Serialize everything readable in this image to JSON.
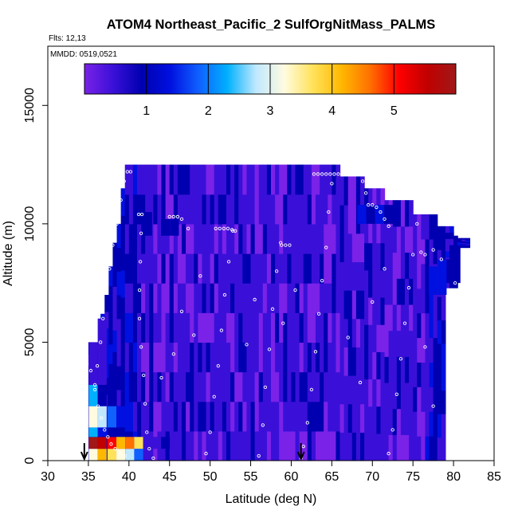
{
  "chart_data": {
    "type": "heatmap",
    "title": "ATOM4 Northeast_Pacific_2 SulfOrgNitMass_PALMS",
    "flights_label": "Flts: 12,13",
    "dates_label": "MMDD: 0519,0521",
    "xlabel": "Latitude (deg N)",
    "ylabel": "Altitude (m)",
    "xlim": [
      30,
      85
    ],
    "ylim": [
      0,
      17500
    ],
    "x_ticks": [
      "30",
      "35",
      "40",
      "45",
      "50",
      "55",
      "60",
      "65",
      "70",
      "75",
      "80",
      "85"
    ],
    "y_ticks": [
      "0",
      "5000",
      "10000",
      "15000"
    ],
    "colorbar": {
      "range": [
        0,
        6
      ],
      "ticks": [
        "1",
        "2",
        "3",
        "4",
        "5"
      ],
      "colors": [
        "#7a22e8",
        "#3a10d8",
        "#0000b0",
        "#0010e0",
        "#1060ff",
        "#00b0ff",
        "#bfe8ff",
        "#fffbe0",
        "#ffe25a",
        "#ffb800",
        "#ff7000",
        "#ff0000",
        "#c00000",
        "#a01818"
      ]
    },
    "arrows_at_latitude": [
      34.5,
      61.2
    ],
    "column_tops": [
      {
        "lat_from": 35.0,
        "lat_to": 36.5,
        "top": 5000
      },
      {
        "lat_from": 36.5,
        "lat_to": 37.0,
        "top": 6200
      },
      {
        "lat_from": 37.0,
        "lat_to": 37.5,
        "top": 7000
      },
      {
        "lat_from": 37.5,
        "lat_to": 38.0,
        "top": 8200
      },
      {
        "lat_from": 38.0,
        "lat_to": 38.5,
        "top": 9200
      },
      {
        "lat_from": 38.5,
        "lat_to": 39.0,
        "top": 10000
      },
      {
        "lat_from": 39.0,
        "lat_to": 39.5,
        "top": 11500
      },
      {
        "lat_from": 39.5,
        "lat_to": 66.0,
        "top": 12500
      },
      {
        "lat_from": 66.0,
        "lat_to": 69.0,
        "top": 12000
      },
      {
        "lat_from": 69.0,
        "lat_to": 71.5,
        "top": 11500
      },
      {
        "lat_from": 71.5,
        "lat_to": 75.0,
        "top": 11000
      },
      {
        "lat_from": 75.0,
        "lat_to": 78.0,
        "top": 10400
      },
      {
        "lat_from": 78.0,
        "lat_to": 80.0,
        "top": 9900
      },
      {
        "lat_from": 80.0,
        "lat_to": 80.5,
        "top": 9500
      },
      {
        "lat_from": 80.5,
        "lat_to": 82.0,
        "top": 9400
      }
    ],
    "column_bottoms": [
      {
        "lat_from": 79.0,
        "lat_to": 80.5,
        "bottom": 7300
      },
      {
        "lat_from": 80.5,
        "lat_to": 82.0,
        "bottom": 9000
      }
    ],
    "cells": [
      {
        "lat": 35.6,
        "alt_from": 0,
        "alt_to": 500,
        "v": 3.0
      },
      {
        "lat": 35.6,
        "alt_from": 500,
        "alt_to": 1000,
        "v": 5.6
      },
      {
        "lat": 35.6,
        "alt_from": 1000,
        "alt_to": 1400,
        "v": 2.4
      },
      {
        "lat": 35.6,
        "alt_from": 1400,
        "alt_to": 2300,
        "v": 3.4
      },
      {
        "lat": 35.6,
        "alt_from": 2300,
        "alt_to": 3200,
        "v": 2.2
      },
      {
        "lat": 35.6,
        "alt_from": 3200,
        "alt_to": 5000,
        "v": 0.8
      },
      {
        "lat": 36.7,
        "alt_from": 0,
        "alt_to": 500,
        "v": 4.2
      },
      {
        "lat": 36.7,
        "alt_from": 500,
        "alt_to": 1000,
        "v": 5.4
      },
      {
        "lat": 36.7,
        "alt_from": 1000,
        "alt_to": 1400,
        "v": 1.4
      },
      {
        "lat": 36.7,
        "alt_from": 1400,
        "alt_to": 2300,
        "v": 2.6
      },
      {
        "lat": 36.7,
        "alt_from": 2300,
        "alt_to": 3200,
        "v": 1.1
      },
      {
        "lat": 36.7,
        "alt_from": 3200,
        "alt_to": 6000,
        "v": 0.7
      },
      {
        "lat": 37.9,
        "alt_from": 0,
        "alt_to": 500,
        "v": 3.8
      },
      {
        "lat": 37.9,
        "alt_from": 500,
        "alt_to": 1000,
        "v": 4.8
      },
      {
        "lat": 37.9,
        "alt_from": 1000,
        "alt_to": 1400,
        "v": 1.0
      },
      {
        "lat": 37.9,
        "alt_from": 1400,
        "alt_to": 2300,
        "v": 1.8
      },
      {
        "lat": 37.9,
        "alt_from": 2300,
        "alt_to": 3200,
        "v": 1.0
      },
      {
        "lat": 39.0,
        "alt_from": 0,
        "alt_to": 500,
        "v": 3.2
      },
      {
        "lat": 39.0,
        "alt_from": 500,
        "alt_to": 1000,
        "v": 4.2
      },
      {
        "lat": 39.0,
        "alt_from": 1400,
        "alt_to": 2300,
        "v": 1.3
      },
      {
        "lat": 40.1,
        "alt_from": 0,
        "alt_to": 500,
        "v": 2.8
      },
      {
        "lat": 40.1,
        "alt_from": 500,
        "alt_to": 1000,
        "v": 4.6
      },
      {
        "lat": 41.2,
        "alt_from": 0,
        "alt_to": 500,
        "v": 2.0
      },
      {
        "lat": 41.2,
        "alt_from": 500,
        "alt_to": 1000,
        "v": 3.6
      },
      {
        "lat": 42.3,
        "alt_from": 500,
        "alt_to": 1000,
        "v": 0.8
      },
      {
        "lat": 43.4,
        "alt_from": 500,
        "alt_to": 1000,
        "v": 0.6
      },
      {
        "lat": 44.5,
        "alt_from": 500,
        "alt_to": 1000,
        "v": 0.9
      },
      {
        "lat": 45.6,
        "alt_from": 500,
        "alt_to": 1000,
        "v": 0.5
      },
      {
        "lat": 42.3,
        "alt_from": 9500,
        "alt_to": 10500,
        "v": 1.2
      },
      {
        "lat": 44.5,
        "alt_from": 9500,
        "alt_to": 10200,
        "v": 1.0
      },
      {
        "lat": 45.6,
        "alt_from": 9500,
        "alt_to": 10200,
        "v": 0.9
      },
      {
        "lat": 68.7,
        "alt_from": 10000,
        "alt_to": 10800,
        "v": 1.6
      },
      {
        "lat": 69.8,
        "alt_from": 10000,
        "alt_to": 10800,
        "v": 1.2
      },
      {
        "lat": 70.9,
        "alt_from": 10000,
        "alt_to": 10800,
        "v": 1.4
      },
      {
        "lat": 72.0,
        "alt_from": 10000,
        "alt_to": 10800,
        "v": 0.9
      },
      {
        "lat": 77.5,
        "alt_from": 7000,
        "alt_to": 8200,
        "v": 1.3
      },
      {
        "lat": 78.6,
        "alt_from": 7000,
        "alt_to": 8500,
        "v": 1.4
      },
      {
        "lat": 79.7,
        "alt_from": 7500,
        "alt_to": 8500,
        "v": 1.2
      },
      {
        "lat": 80.3,
        "alt_from": 7500,
        "alt_to": 9000,
        "v": 1.0
      }
    ],
    "points": [
      {
        "lat": 34.8,
        "alt": 4100
      },
      {
        "lat": 35.3,
        "alt": 3800
      },
      {
        "lat": 35.8,
        "alt": 3000
      },
      {
        "lat": 36.2,
        "alt": 2300
      },
      {
        "lat": 36.6,
        "alt": 1800
      },
      {
        "lat": 37.0,
        "alt": 1300
      },
      {
        "lat": 37.4,
        "alt": 1000
      },
      {
        "lat": 37.8,
        "alt": 700
      },
      {
        "lat": 38.3,
        "alt": 500
      },
      {
        "lat": 38.9,
        "alt": 300
      },
      {
        "lat": 39.5,
        "alt": 200
      },
      {
        "lat": 35.8,
        "alt": 3200
      },
      {
        "lat": 36.1,
        "alt": 4000
      },
      {
        "lat": 36.5,
        "alt": 5000
      },
      {
        "lat": 36.8,
        "alt": 6000
      },
      {
        "lat": 37.2,
        "alt": 7100
      },
      {
        "lat": 37.6,
        "alt": 8100
      },
      {
        "lat": 38.0,
        "alt": 9100
      },
      {
        "lat": 38.5,
        "alt": 10000
      },
      {
        "lat": 39.0,
        "alt": 11000
      },
      {
        "lat": 39.4,
        "alt": 11800
      },
      {
        "lat": 39.8,
        "alt": 12200
      },
      {
        "lat": 40.2,
        "alt": 12200
      },
      {
        "lat": 41.2,
        "alt": 10400
      },
      {
        "lat": 41.6,
        "alt": 10400
      },
      {
        "lat": 41.5,
        "alt": 9600
      },
      {
        "lat": 41.4,
        "alt": 8400
      },
      {
        "lat": 41.3,
        "alt": 7200
      },
      {
        "lat": 41.3,
        "alt": 6000
      },
      {
        "lat": 41.5,
        "alt": 4800
      },
      {
        "lat": 41.8,
        "alt": 3600
      },
      {
        "lat": 42.0,
        "alt": 2400
      },
      {
        "lat": 42.2,
        "alt": 1200
      },
      {
        "lat": 42.5,
        "alt": 500
      },
      {
        "lat": 43.0,
        "alt": 100
      },
      {
        "lat": 45.0,
        "alt": 10300
      },
      {
        "lat": 45.5,
        "alt": 10300
      },
      {
        "lat": 46.0,
        "alt": 10300
      },
      {
        "lat": 46.5,
        "alt": 10200
      },
      {
        "lat": 47.3,
        "alt": 9800
      },
      {
        "lat": 50.7,
        "alt": 9800
      },
      {
        "lat": 51.2,
        "alt": 9800
      },
      {
        "lat": 51.7,
        "alt": 9800
      },
      {
        "lat": 52.2,
        "alt": 9800
      },
      {
        "lat": 52.7,
        "alt": 9750
      },
      {
        "lat": 53.1,
        "alt": 9700
      },
      {
        "lat": 58.8,
        "alt": 9100
      },
      {
        "lat": 59.3,
        "alt": 9100
      },
      {
        "lat": 59.8,
        "alt": 9100
      },
      {
        "lat": 62.8,
        "alt": 12100
      },
      {
        "lat": 63.3,
        "alt": 12100
      },
      {
        "lat": 63.8,
        "alt": 12100
      },
      {
        "lat": 64.3,
        "alt": 12100
      },
      {
        "lat": 64.8,
        "alt": 12100
      },
      {
        "lat": 65.3,
        "alt": 12100
      },
      {
        "lat": 65.8,
        "alt": 12100
      },
      {
        "lat": 66.3,
        "alt": 12100
      },
      {
        "lat": 66.8,
        "alt": 12100
      },
      {
        "lat": 67.3,
        "alt": 12100
      },
      {
        "lat": 67.8,
        "alt": 12100
      },
      {
        "lat": 68.3,
        "alt": 12100
      },
      {
        "lat": 68.8,
        "alt": 11800
      },
      {
        "lat": 69.2,
        "alt": 11300
      },
      {
        "lat": 69.5,
        "alt": 10800
      },
      {
        "lat": 70.0,
        "alt": 10800
      },
      {
        "lat": 70.5,
        "alt": 10700
      },
      {
        "lat": 71.0,
        "alt": 10500
      },
      {
        "lat": 71.5,
        "alt": 10200
      },
      {
        "lat": 72.0,
        "alt": 9900
      },
      {
        "lat": 76.0,
        "alt": 8800
      },
      {
        "lat": 76.5,
        "alt": 8700
      },
      {
        "lat": 77.5,
        "alt": 8900
      },
      {
        "lat": 78.5,
        "alt": 8500
      },
      {
        "lat": 81.5,
        "alt": 9500
      },
      {
        "lat": 80.2,
        "alt": 7500
      },
      {
        "lat": 80.1,
        "alt": 6500
      },
      {
        "lat": 80.0,
        "alt": 5500
      },
      {
        "lat": 79.9,
        "alt": 4500
      },
      {
        "lat": 79.8,
        "alt": 3500
      },
      {
        "lat": 79.7,
        "alt": 2500
      },
      {
        "lat": 79.6,
        "alt": 1500
      },
      {
        "lat": 79.5,
        "alt": 500
      },
      {
        "lat": 79.4,
        "alt": 100
      },
      {
        "lat": 61.2,
        "alt": 100
      },
      {
        "lat": 61.5,
        "alt": 600
      },
      {
        "lat": 62.0,
        "alt": 1600
      },
      {
        "lat": 62.5,
        "alt": 3000
      },
      {
        "lat": 63.0,
        "alt": 4600
      },
      {
        "lat": 63.4,
        "alt": 6200
      },
      {
        "lat": 63.8,
        "alt": 7600
      },
      {
        "lat": 64.3,
        "alt": 9000
      },
      {
        "lat": 64.6,
        "alt": 10500
      },
      {
        "lat": 65.0,
        "alt": 11700
      },
      {
        "lat": 49.5,
        "alt": 300
      },
      {
        "lat": 50.0,
        "alt": 1200
      },
      {
        "lat": 50.5,
        "alt": 2700
      },
      {
        "lat": 51.0,
        "alt": 4000
      },
      {
        "lat": 51.4,
        "alt": 5500
      },
      {
        "lat": 51.8,
        "alt": 7000
      },
      {
        "lat": 52.3,
        "alt": 8400
      },
      {
        "lat": 52.8,
        "alt": 9700
      },
      {
        "lat": 56.0,
        "alt": 200
      },
      {
        "lat": 56.5,
        "alt": 1500
      },
      {
        "lat": 56.8,
        "alt": 3100
      },
      {
        "lat": 57.3,
        "alt": 4700
      },
      {
        "lat": 57.7,
        "alt": 6400
      },
      {
        "lat": 58.2,
        "alt": 8000
      },
      {
        "lat": 58.7,
        "alt": 9200
      },
      {
        "lat": 72.0,
        "alt": 300
      },
      {
        "lat": 72.5,
        "alt": 1300
      },
      {
        "lat": 73.0,
        "alt": 2800
      },
      {
        "lat": 73.5,
        "alt": 4300
      },
      {
        "lat": 74.0,
        "alt": 5800
      },
      {
        "lat": 74.5,
        "alt": 7300
      },
      {
        "lat": 75.0,
        "alt": 8700
      },
      {
        "lat": 75.5,
        "alt": 10000
      },
      {
        "lat": 44.0,
        "alt": 3500
      },
      {
        "lat": 45.5,
        "alt": 4500
      },
      {
        "lat": 46.5,
        "alt": 6300
      },
      {
        "lat": 48.0,
        "alt": 5300
      },
      {
        "lat": 48.8,
        "alt": 7800
      },
      {
        "lat": 54.5,
        "alt": 4900
      },
      {
        "lat": 55.5,
        "alt": 6800
      },
      {
        "lat": 59.0,
        "alt": 5800
      },
      {
        "lat": 60.5,
        "alt": 7200
      },
      {
        "lat": 67.0,
        "alt": 5200
      },
      {
        "lat": 68.5,
        "alt": 3300
      },
      {
        "lat": 70.0,
        "alt": 6700
      },
      {
        "lat": 71.5,
        "alt": 8100
      },
      {
        "lat": 76.5,
        "alt": 4800
      },
      {
        "lat": 77.5,
        "alt": 2300
      }
    ]
  }
}
